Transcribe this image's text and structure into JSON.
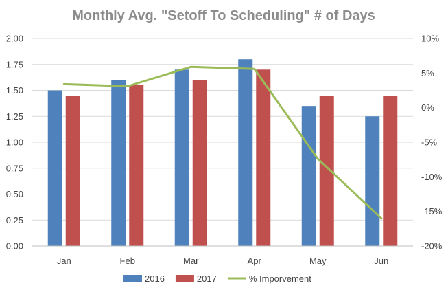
{
  "chart_data": {
    "type": "bar",
    "title": "Monthly Avg. \"Setoff To Scheduling\"  # of Days",
    "categories": [
      "Jan",
      "Feb",
      "Mar",
      "Apr",
      "May",
      "Jun"
    ],
    "series": [
      {
        "name": "2016",
        "type": "bar",
        "axis": "left",
        "color": "#4f81bd",
        "values": [
          1.5,
          1.6,
          1.7,
          1.8,
          1.35,
          1.25
        ]
      },
      {
        "name": "2017",
        "type": "bar",
        "axis": "left",
        "color": "#c0504d",
        "values": [
          1.45,
          1.55,
          1.6,
          1.7,
          1.45,
          1.45
        ]
      },
      {
        "name": "% Imporvement",
        "type": "line",
        "axis": "right",
        "color": "#9bbb59",
        "values": [
          3.4,
          3.1,
          5.9,
          5.6,
          -7.4,
          -16.0
        ]
      }
    ],
    "y_left": {
      "min": 0,
      "max": 2,
      "step": 0.25,
      "tick_labels": [
        "0.00",
        "0.25",
        "0.50",
        "0.75",
        "1.00",
        "1.25",
        "1.50",
        "1.75",
        "2.00"
      ]
    },
    "y_right": {
      "min": -20,
      "max": 10,
      "step": 5,
      "tick_labels": [
        "-20%",
        "-15%",
        "-10%",
        "-5%",
        "0%",
        "5%",
        "10%"
      ]
    },
    "grid": true,
    "legend": "bottom"
  }
}
